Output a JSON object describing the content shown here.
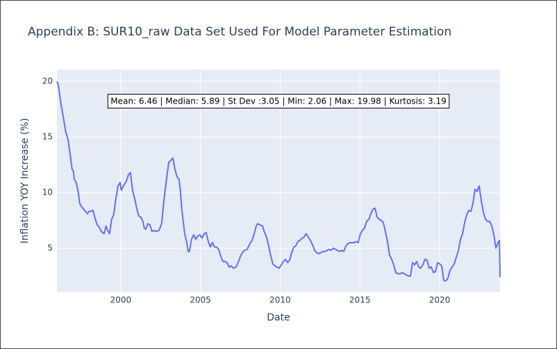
{
  "chart_data": {
    "type": "line",
    "title": "Appendix B: SUR10_raw Data Set Used For Model Parameter Estimation",
    "x_label": "Date",
    "y_label": "Inflation YOY Increase (%)",
    "annotation": "Mean: 6.46 | Median: 5.89 | St Dev :3.05 | Min: 2.06 | Max: 19.98 | Kurtosis: 3.19",
    "xlim": [
      1996,
      2023.79
    ],
    "ylim": [
      1.06,
      21.06
    ],
    "xticks": [
      2000,
      2005,
      2010,
      2015,
      2020
    ],
    "yticks": [
      5,
      10,
      15,
      20
    ],
    "grid": true,
    "series": [
      {
        "color": "#636efa",
        "x": [
          1996,
          1996.08,
          1996.25,
          1996.43,
          1996.56,
          1996.69,
          1996.82,
          1996.95,
          1997.04,
          1997.08,
          1997.21,
          1997.34,
          1997.43,
          1997.56,
          1997.73,
          1997.91,
          1998,
          1998.13,
          1998.26,
          1998.39,
          1998.52,
          1998.65,
          1998.78,
          1998.95,
          1999.08,
          1999.17,
          1999.3,
          1999.43,
          1999.56,
          1999.69,
          1999.83,
          1999.96,
          2000.04,
          2000.17,
          2000.35,
          2000.48,
          2000.61,
          2000.74,
          2000.87,
          2001,
          2001.13,
          2001.26,
          2001.39,
          2001.48,
          2001.57,
          2001.7,
          2001.83,
          2001.96,
          2002.09,
          2002.22,
          2002.4,
          2002.57,
          2002.7,
          2002.88,
          2003.01,
          2003.14,
          2003.27,
          2003.4,
          2003.53,
          2003.66,
          2003.75,
          2003.83,
          2003.92,
          2004.01,
          2004.14,
          2004.23,
          2004.31,
          2004.44,
          2004.58,
          2004.71,
          2004.84,
          2004.97,
          2005.1,
          2005.23,
          2005.36,
          2005.49,
          2005.62,
          2005.75,
          2005.88,
          2006.01,
          2006.14,
          2006.27,
          2006.41,
          2006.54,
          2006.67,
          2006.8,
          2006.93,
          2007.06,
          2007.23,
          2007.36,
          2007.49,
          2007.63,
          2007.76,
          2007.93,
          2008.1,
          2008.24,
          2008.37,
          2008.5,
          2008.58,
          2008.71,
          2008.89,
          2009.02,
          2009.15,
          2009.28,
          2009.41,
          2009.54,
          2009.67,
          2009.8,
          2009.93,
          2010.07,
          2010.2,
          2010.33,
          2010.46,
          2010.59,
          2010.72,
          2010.85,
          2010.98,
          2011.11,
          2011.24,
          2011.37,
          2011.5,
          2011.63,
          2011.76,
          2011.9,
          2012.03,
          2012.16,
          2012.29,
          2012.42,
          2012.55,
          2012.68,
          2012.81,
          2012.94,
          2013.07,
          2013.2,
          2013.33,
          2013.46,
          2013.59,
          2013.73,
          2013.86,
          2013.99,
          2014.12,
          2014.25,
          2014.38,
          2014.51,
          2014.64,
          2014.77,
          2014.9,
          2015.03,
          2015.16,
          2015.29,
          2015.42,
          2015.56,
          2015.69,
          2015.82,
          2015.95,
          2016.08,
          2016.21,
          2016.34,
          2016.47,
          2016.6,
          2016.73,
          2016.86,
          2016.99,
          2017.12,
          2017.25,
          2017.39,
          2017.52,
          2017.65,
          2017.78,
          2017.91,
          2018.04,
          2018.17,
          2018.3,
          2018.43,
          2018.56,
          2018.69,
          2018.82,
          2018.95,
          2019.08,
          2019.22,
          2019.35,
          2019.48,
          2019.61,
          2019.74,
          2019.87,
          2020,
          2020.13,
          2020.26,
          2020.39,
          2020.52,
          2020.65,
          2020.78,
          2020.92,
          2021.05,
          2021.18,
          2021.31,
          2021.44,
          2021.57,
          2021.7,
          2021.83,
          2021.96,
          2022.09,
          2022.22,
          2022.35,
          2022.48,
          2022.61,
          2022.75,
          2022.88,
          2023.01,
          2023.14,
          2023.27,
          2023.4,
          2023.53,
          2023.66,
          2023.75,
          2023.79
        ],
        "values": [
          19.98,
          19.7,
          18,
          16.5,
          15.4,
          14.8,
          13.5,
          12.1,
          11.9,
          11.2,
          10.9,
          10,
          9,
          8.7,
          8.4,
          8.1,
          8.3,
          8.3,
          8.4,
          7.7,
          7.1,
          6.9,
          6.5,
          6.3,
          7,
          6.6,
          6.3,
          7.6,
          8,
          9.4,
          10.6,
          10.9,
          10.2,
          10.6,
          11,
          11.6,
          11.8,
          10.2,
          9.5,
          8.6,
          7.9,
          7.8,
          7.4,
          6.8,
          6.7,
          7.2,
          7.1,
          6.5,
          6.6,
          6.5,
          6.6,
          7.2,
          9.2,
          11.3,
          12.7,
          12.9,
          13.1,
          12.1,
          11.4,
          11.2,
          10,
          8.5,
          7.4,
          6.3,
          5.5,
          4.7,
          4.7,
          5.8,
          6.2,
          5.8,
          6.1,
          6.2,
          5.9,
          6.3,
          6.4,
          5.6,
          5.1,
          5.5,
          5.1,
          5.1,
          4.9,
          4.3,
          3.8,
          3.8,
          3.7,
          3.3,
          3.4,
          3.2,
          3.3,
          3.7,
          4.2,
          4.6,
          4.8,
          4.9,
          5.4,
          5.7,
          6.3,
          7,
          7.2,
          7.1,
          7,
          6.4,
          6,
          5.2,
          4.3,
          3.6,
          3.4,
          3.3,
          3.2,
          3.5,
          3.8,
          4,
          3.7,
          3.9,
          4.6,
          5.1,
          5.2,
          5.6,
          5.7,
          5.9,
          6,
          6.3,
          6,
          5.7,
          5.3,
          4.8,
          4.6,
          4.5,
          4.6,
          4.7,
          4.7,
          4.8,
          4.9,
          4.8,
          5,
          4.9,
          4.8,
          4.7,
          4.8,
          4.7,
          5.2,
          5.4,
          5.5,
          5.5,
          5.5,
          5.6,
          5.5,
          6.3,
          6.6,
          6.8,
          7.4,
          7.6,
          8.1,
          8.5,
          8.6,
          7.8,
          7.6,
          7.5,
          7.3,
          6.5,
          5.6,
          4.4,
          4,
          3.5,
          2.8,
          2.7,
          2.7,
          2.8,
          2.7,
          2.6,
          2.5,
          2.5,
          3.7,
          3.5,
          3.8,
          3.3,
          3.2,
          3.5,
          4,
          3.9,
          3.2,
          3.3,
          2.8,
          2.9,
          3.7,
          3.6,
          3.4,
          2.1,
          2.06,
          2.3,
          3,
          3.3,
          3.6,
          4.2,
          4.8,
          5.8,
          6.3,
          7.3,
          8,
          8.4,
          8.3,
          9,
          10.3,
          10.1,
          10.6,
          9.3,
          8.2,
          7.6,
          7.4,
          7.4,
          7,
          6.2,
          5,
          5.5,
          5.7,
          2.4
        ]
      }
    ]
  }
}
